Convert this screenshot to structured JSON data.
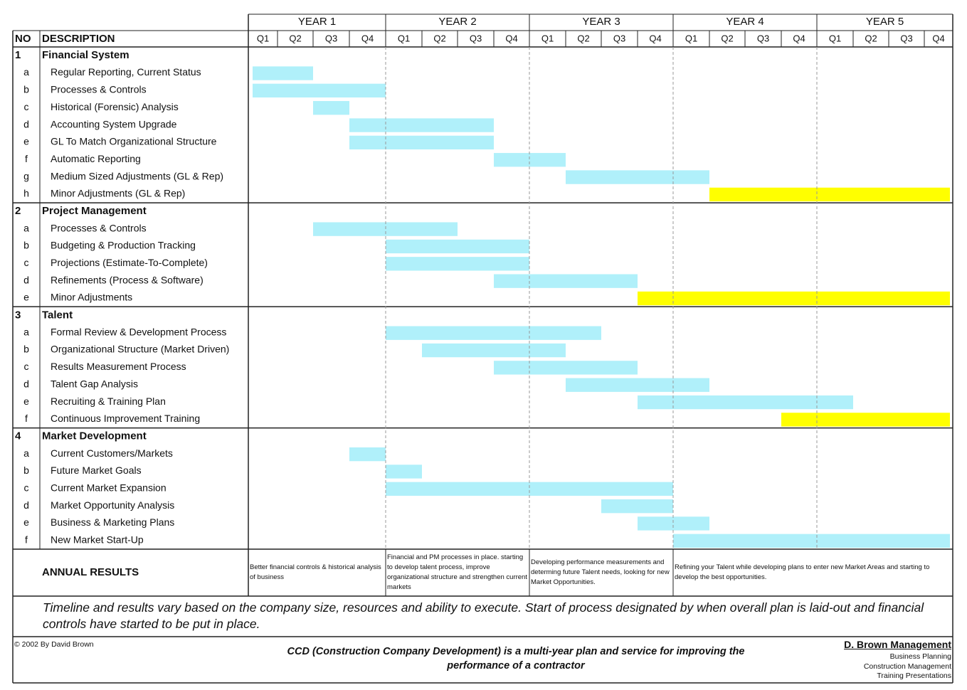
{
  "header": {
    "no": "NO",
    "description": "DESCRIPTION",
    "years": [
      "YEAR 1",
      "YEAR 2",
      "YEAR 3",
      "YEAR 4",
      "YEAR 5"
    ],
    "quarters": [
      "Q1",
      "Q2",
      "Q3",
      "Q4"
    ]
  },
  "sections": [
    {
      "no": "1",
      "title": "Financial System",
      "tasks": [
        {
          "no": "a",
          "label": "Regular Reporting, Current Status",
          "start": 1,
          "end": 2,
          "color": "#b0f0fa"
        },
        {
          "no": "b",
          "label": "Processes & Controls",
          "start": 1,
          "end": 4,
          "color": "#b0f0fa"
        },
        {
          "no": "c",
          "label": "Historical (Forensic) Analysis",
          "start": 3,
          "end": 3,
          "color": "#b0f0fa"
        },
        {
          "no": "d",
          "label": "Accounting System Upgrade",
          "start": 4,
          "end": 7,
          "color": "#b0f0fa"
        },
        {
          "no": "e",
          "label": "GL To Match Organizational Structure",
          "start": 4,
          "end": 7,
          "color": "#b0f0fa"
        },
        {
          "no": "f",
          "label": "Automatic Reporting",
          "start": 8,
          "end": 9,
          "color": "#b0f0fa"
        },
        {
          "no": "g",
          "label": "Medium Sized Adjustments (GL & Rep)",
          "start": 10,
          "end": 13,
          "color": "#b0f0fa"
        },
        {
          "no": "h",
          "label": "Minor Adjustments (GL & Rep)",
          "start": 14,
          "end": 20,
          "color": "#ffff00"
        }
      ]
    },
    {
      "no": "2",
      "title": "Project Management",
      "tasks": [
        {
          "no": "a",
          "label": "Processes & Controls",
          "start": 3,
          "end": 6,
          "color": "#b0f0fa"
        },
        {
          "no": "b",
          "label": "Budgeting & Production Tracking",
          "start": 5,
          "end": 8,
          "color": "#b0f0fa"
        },
        {
          "no": "c",
          "label": "Projections (Estimate-To-Complete)",
          "start": 5,
          "end": 8,
          "color": "#b0f0fa"
        },
        {
          "no": "d",
          "label": "Refinements (Process & Software)",
          "start": 8,
          "end": 11,
          "color": "#b0f0fa"
        },
        {
          "no": "e",
          "label": "Minor Adjustments",
          "start": 12,
          "end": 20,
          "color": "#ffff00"
        }
      ]
    },
    {
      "no": "3",
      "title": "Talent",
      "tasks": [
        {
          "no": "a",
          "label": "Formal Review & Development Process",
          "start": 5,
          "end": 10,
          "color": "#b0f0fa"
        },
        {
          "no": "b",
          "label": "Organizational Structure (Market Driven)",
          "start": 6,
          "end": 9,
          "color": "#b0f0fa"
        },
        {
          "no": "c",
          "label": "Results Measurement Process",
          "start": 8,
          "end": 11,
          "color": "#b0f0fa"
        },
        {
          "no": "d",
          "label": "Talent Gap Analysis",
          "start": 10,
          "end": 13,
          "color": "#b0f0fa"
        },
        {
          "no": "e",
          "label": "Recruiting & Training Plan",
          "start": 12,
          "end": 17,
          "color": "#b0f0fa"
        },
        {
          "no": "f",
          "label": "Continuous Improvement Training",
          "start": 16,
          "end": 20,
          "color": "#ffff00"
        }
      ]
    },
    {
      "no": "4",
      "title": "Market Development",
      "tasks": [
        {
          "no": "a",
          "label": "Current Customers/Markets",
          "start": 4,
          "end": 4,
          "color": "#b0f0fa"
        },
        {
          "no": "b",
          "label": "Future Market Goals",
          "start": 5,
          "end": 5,
          "color": "#b0f0fa"
        },
        {
          "no": "c",
          "label": "Current Market Expansion",
          "start": 5,
          "end": 12,
          "color": "#b0f0fa"
        },
        {
          "no": "d",
          "label": "Market Opportunity Analysis",
          "start": 11,
          "end": 12,
          "color": "#b0f0fa"
        },
        {
          "no": "e",
          "label": "Business & Marketing Plans",
          "start": 12,
          "end": 13,
          "color": "#b0f0fa"
        },
        {
          "no": "f",
          "label": "New Market Start-Up",
          "start": 13,
          "end": 20,
          "color": "#b0f0fa"
        }
      ]
    }
  ],
  "results": {
    "label": "ANNUAL RESULTS",
    "cells": [
      "Better financial controls & historical analysis of business",
      "Financial and PM processes in place. starting to develop talent process, improve organizational structure and strengthen current markets",
      "Developing performance measurements and determing future Talent needs, looking for new Market Opportunities.",
      "Refining your Talent while developing plans to enter new Market Areas and starting to develop the best opportunities."
    ]
  },
  "note": "Timeline and results vary based on the company size, resources and ability to execute.  Start of process designated by when overall plan is laid-out and financial controls have started to be put in place.",
  "footer": {
    "copyright": "© 2002 By David Brown",
    "tagline": "CCD (Construction Company Development) is a multi-year plan and service for improving the performance of a contractor",
    "company": "D. Brown Management",
    "services": [
      "Business Planning",
      "Construction Management",
      "Training Presentations"
    ]
  }
}
